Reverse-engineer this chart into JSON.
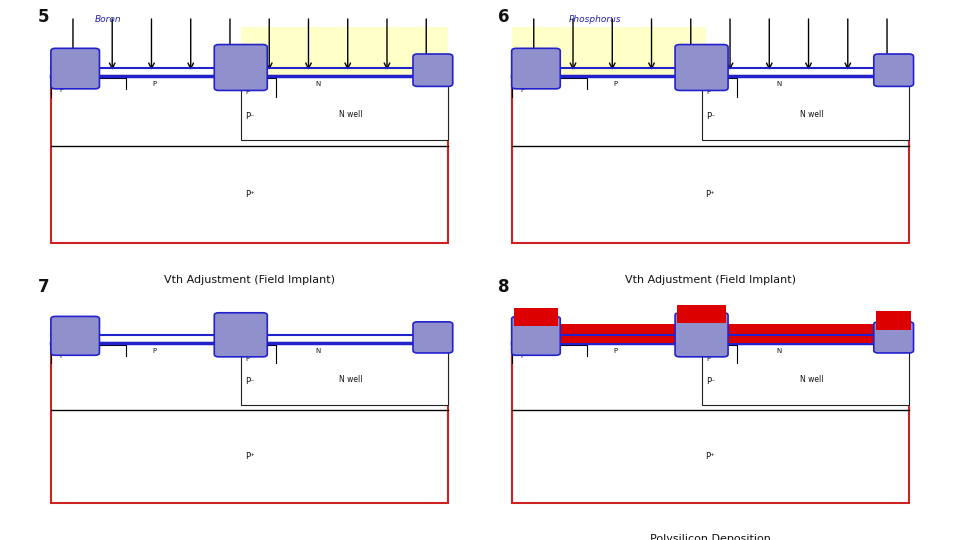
{
  "panels": [
    {
      "num": "5",
      "label": "Vth Adjustment (Field Implant)",
      "has_arrows": true,
      "arrow_label": "Boron",
      "yellow_right": true,
      "yellow_left": false,
      "has_red_poly": false
    },
    {
      "num": "6",
      "label": "Vth Adjustment (Field Implant)",
      "has_arrows": true,
      "arrow_label": "Phosphorus",
      "yellow_right": false,
      "yellow_left": true,
      "has_red_poly": false
    },
    {
      "num": "7",
      "label": "",
      "has_arrows": false,
      "arrow_label": "",
      "yellow_right": false,
      "yellow_left": false,
      "has_red_poly": false
    },
    {
      "num": "8",
      "label": "Polysilicon Deposition",
      "has_arrows": false,
      "arrow_label": "",
      "yellow_right": false,
      "yellow_left": false,
      "has_red_poly": true
    }
  ],
  "colors": {
    "poly_blue": "#9090cc",
    "yellow_fill": "#ffffc8",
    "red_poly": "#dd0000",
    "substrate_outline": "#cc2222",
    "blue_line": "#2222cc",
    "background": "#ffffff",
    "text_dark": "#111111",
    "text_blue": "#2222aa",
    "nwell_line": "#222222",
    "pminus_line": "#aaaaaa"
  }
}
